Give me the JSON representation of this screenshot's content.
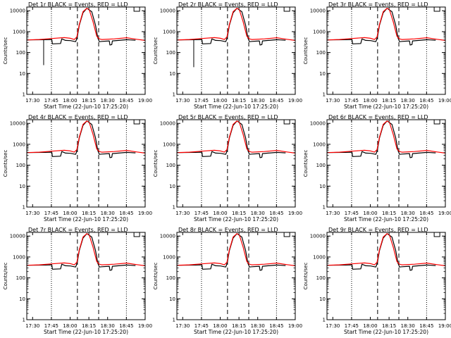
{
  "panel_titles": [
    "Det 1r BLACK = Events, RED = LLD",
    "Det 2r BLACK = Events, RED = LLD",
    "Det 3r BLACK = Events, RED = LLD",
    "Det 4r BLACK = Events, RED = LLD",
    "Det 5r BLACK = Events, RED = LLD",
    "Det 6r BLACK = Events, RED = LLD",
    "Det 7r BLACK = Events, RED = LLD",
    "Det 8r BLACK = Events, RED = LLD",
    "Det 9r BLACK = Events, RED = LLD"
  ],
  "xlabel": "Start Time (22-Jun-10 17:25:20)",
  "ylabel": "Counts/sec",
  "x_tick_labels": [
    "17:30",
    "17:45",
    "18:00",
    "18:15",
    "18:30",
    "18:45",
    "19:00"
  ],
  "y_tick_labels": [
    "1",
    "10",
    "100",
    "1000",
    "10000"
  ],
  "colors": {
    "events": "#000000",
    "lld": "#ff0000",
    "axis": "#000000"
  },
  "chart_data": {
    "type": "line",
    "layout": "3x3 grid of identical-style panels",
    "xunit": "minutes after 17:25:20",
    "xlim": [
      0,
      94.7
    ],
    "ylim": [
      1,
      15000
    ],
    "yscale": "log",
    "x_ticks_minutes": [
      4.67,
      19.67,
      34.67,
      49.67,
      64.67,
      79.67,
      94.67
    ],
    "dotted_vertical_lines_minutes": [
      19.7,
      79.7
    ],
    "dashed_vertical_lines_minutes": [
      40.5,
      57.5
    ],
    "series": [
      {
        "name": "Events",
        "color": "#000000",
        "x": [
          0,
          15,
          20,
          20.5,
          27,
          28,
          31,
          35,
          39,
          39.5,
          40.5,
          42,
          45,
          48,
          52,
          55,
          56.8,
          57.5,
          58,
          60,
          66,
          66.5,
          68,
          68.5,
          75,
          80,
          83,
          87
        ],
        "y": [
          400,
          410,
          420,
          260,
          270,
          450,
          380,
          370,
          330,
          380,
          600,
          2000,
          8000,
          13000,
          9000,
          2000,
          500,
          400,
          330,
          340,
          360,
          230,
          240,
          360,
          390,
          410,
          400,
          390
        ]
      },
      {
        "name": "LLD",
        "color": "#ff0000",
        "x": [
          0,
          10,
          20,
          30,
          35,
          38,
          40,
          42,
          45,
          48,
          50,
          53,
          56,
          58,
          60,
          70,
          80,
          88,
          94.7
        ],
        "y": [
          400,
          420,
          470,
          520,
          480,
          420,
          550,
          2200,
          9000,
          13000,
          11000,
          3000,
          600,
          450,
          420,
          450,
          510,
          430,
          380
        ]
      }
    ]
  }
}
